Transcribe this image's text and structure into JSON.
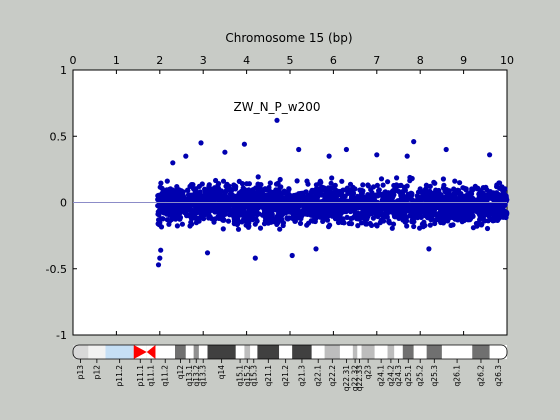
{
  "chart_data": {
    "type": "scatter",
    "title": "Chromosome 15 (bp)",
    "annotation": "ZW_N_P_w200",
    "xlim": [
      0,
      10
    ],
    "ylim": [
      -1,
      1
    ],
    "x_ticks": [
      "0",
      "1",
      "2",
      "3",
      "4",
      "5",
      "6",
      "7",
      "8",
      "9",
      "10"
    ],
    "y_ticks": [
      "1",
      "0.5",
      "0",
      "-0.5",
      "-1"
    ],
    "x_tick_values": [
      0,
      1,
      2,
      3,
      4,
      5,
      6,
      7,
      8,
      9,
      10
    ],
    "y_tick_values": [
      1,
      0.5,
      0,
      -0.5,
      -1
    ],
    "reference_line_y": 0,
    "series": [
      {
        "x_range": [
          1.95,
          10.0
        ],
        "y_center": 0.0,
        "y_core_upper": 0.17,
        "y_core_lower": -0.2,
        "marker_color": "#0000b0",
        "outliers": [
          {
            "x": 1.97,
            "y": -0.47
          },
          {
            "x": 2.0,
            "y": -0.42
          },
          {
            "x": 2.02,
            "y": -0.36
          },
          {
            "x": 2.3,
            "y": 0.3
          },
          {
            "x": 2.6,
            "y": 0.35
          },
          {
            "x": 2.95,
            "y": 0.45
          },
          {
            "x": 3.5,
            "y": 0.38
          },
          {
            "x": 3.95,
            "y": 0.44
          },
          {
            "x": 4.7,
            "y": 0.62
          },
          {
            "x": 5.2,
            "y": 0.4
          },
          {
            "x": 5.9,
            "y": 0.35
          },
          {
            "x": 6.3,
            "y": 0.4
          },
          {
            "x": 7.0,
            "y": 0.36
          },
          {
            "x": 7.7,
            "y": 0.35
          },
          {
            "x": 7.85,
            "y": 0.46
          },
          {
            "x": 8.6,
            "y": 0.4
          },
          {
            "x": 9.6,
            "y": 0.36
          },
          {
            "x": 3.1,
            "y": -0.38
          },
          {
            "x": 4.2,
            "y": -0.42
          },
          {
            "x": 5.05,
            "y": -0.4
          },
          {
            "x": 5.6,
            "y": -0.35
          },
          {
            "x": 8.2,
            "y": -0.35
          }
        ]
      }
    ]
  },
  "ideogram": {
    "bands": [
      {
        "name": "p13",
        "start": 0.0,
        "end": 0.35,
        "color": "#d8d8d8"
      },
      {
        "name": "p12",
        "start": 0.35,
        "end": 0.75,
        "color": "#f2f2f2"
      },
      {
        "name": "p11.2",
        "start": 0.75,
        "end": 1.4,
        "color": "#c6dff5"
      },
      {
        "name": "p11.1",
        "start": 1.4,
        "end": 1.7,
        "color": "#ffffff"
      },
      {
        "name": "q11.1",
        "start": 1.7,
        "end": 1.9,
        "color": "#ffffff"
      },
      {
        "name": "q11.2",
        "start": 1.9,
        "end": 2.35,
        "color": "#ffffff"
      },
      {
        "name": "q12",
        "start": 2.35,
        "end": 2.6,
        "color": "#707070"
      },
      {
        "name": "q13.1",
        "start": 2.6,
        "end": 2.78,
        "color": "#ffffff"
      },
      {
        "name": "q13.2",
        "start": 2.78,
        "end": 2.9,
        "color": "#909090"
      },
      {
        "name": "q13.3",
        "start": 2.9,
        "end": 3.1,
        "color": "#ffffff"
      },
      {
        "name": "q14",
        "start": 3.1,
        "end": 3.75,
        "color": "#404040"
      },
      {
        "name": "q15.1",
        "start": 3.75,
        "end": 3.95,
        "color": "#ffffff"
      },
      {
        "name": "q15.2",
        "start": 3.95,
        "end": 4.08,
        "color": "#bdbdbd"
      },
      {
        "name": "q15.3",
        "start": 4.08,
        "end": 4.25,
        "color": "#ffffff"
      },
      {
        "name": "q21.1",
        "start": 4.25,
        "end": 4.75,
        "color": "#404040"
      },
      {
        "name": "q21.2",
        "start": 4.75,
        "end": 5.05,
        "color": "#ffffff"
      },
      {
        "name": "q21.3",
        "start": 5.05,
        "end": 5.5,
        "color": "#404040"
      },
      {
        "name": "q22.1",
        "start": 5.5,
        "end": 5.8,
        "color": "#ffffff"
      },
      {
        "name": "q22.2",
        "start": 5.8,
        "end": 6.15,
        "color": "#bdbdbd"
      },
      {
        "name": "q22.31",
        "start": 6.15,
        "end": 6.45,
        "color": "#ffffff"
      },
      {
        "name": "q22.32",
        "start": 6.45,
        "end": 6.55,
        "color": "#bdbdbd"
      },
      {
        "name": "q22.33",
        "start": 6.55,
        "end": 6.65,
        "color": "#ffffff"
      },
      {
        "name": "q23",
        "start": 6.65,
        "end": 6.95,
        "color": "#bdbdbd"
      },
      {
        "name": "q24.1",
        "start": 6.95,
        "end": 7.25,
        "color": "#ffffff"
      },
      {
        "name": "q24.2",
        "start": 7.25,
        "end": 7.4,
        "color": "#bdbdbd"
      },
      {
        "name": "q24.3",
        "start": 7.4,
        "end": 7.6,
        "color": "#ffffff"
      },
      {
        "name": "q25.1",
        "start": 7.6,
        "end": 7.85,
        "color": "#707070"
      },
      {
        "name": "q25.2",
        "start": 7.85,
        "end": 8.15,
        "color": "#ffffff"
      },
      {
        "name": "q25.3",
        "start": 8.15,
        "end": 8.5,
        "color": "#707070"
      },
      {
        "name": "q26.1",
        "start": 8.5,
        "end": 9.2,
        "color": "#ffffff"
      },
      {
        "name": "q26.2",
        "start": 9.2,
        "end": 9.6,
        "color": "#707070"
      },
      {
        "name": "q26.3",
        "start": 9.6,
        "end": 10.0,
        "color": "#ffffff"
      }
    ],
    "centromere_color": "#ff0000"
  }
}
